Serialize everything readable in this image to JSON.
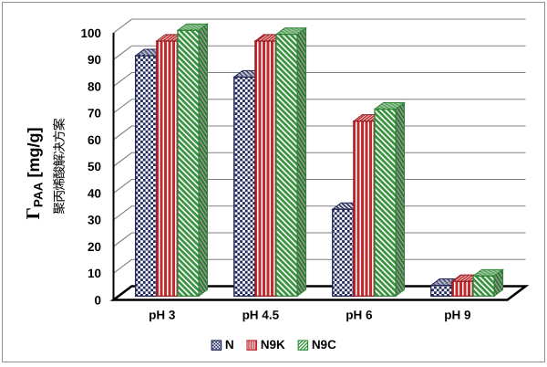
{
  "window": {
    "background": "#ffffff",
    "border_color": "#8f8f8f"
  },
  "chart_data": {
    "type": "bar",
    "projection": "3d",
    "title": "",
    "categories": [
      "pH 3",
      "pH 4.5",
      "pH 6",
      "pH 9"
    ],
    "series": [
      {
        "name": "N",
        "pattern": "checker",
        "color": "#232B5E",
        "stroke": "#1B2150",
        "values": [
          90,
          82,
          32.5,
          4
        ]
      },
      {
        "name": "N9K",
        "pattern": "vertical-stripes",
        "color": "#C22A2D",
        "stroke": "#941D20",
        "values": [
          95.5,
          95.5,
          65.5,
          5.5
        ]
      },
      {
        "name": "N9C",
        "pattern": "diagonal-stripes",
        "color": "#39923F",
        "stroke": "#2F8436",
        "values": [
          99.5,
          98,
          70,
          7.5
        ]
      }
    ],
    "ylabel": {
      "gamma": "Γ",
      "subscript": "PAA",
      "units": " [mg/g]"
    },
    "ylabel_cn": "聚丙烯酸解决方案",
    "xlabel": "",
    "ylim": [
      0,
      100
    ],
    "ytick_step": 10,
    "yticks": [
      "0",
      "10",
      "20",
      "30",
      "40",
      "50",
      "60",
      "70",
      "80",
      "90",
      "100"
    ],
    "grid": "horizontal",
    "gridline_color": "#808080",
    "legend_position": "bottom",
    "legend": [
      "N",
      "N9K",
      "N9C"
    ]
  }
}
